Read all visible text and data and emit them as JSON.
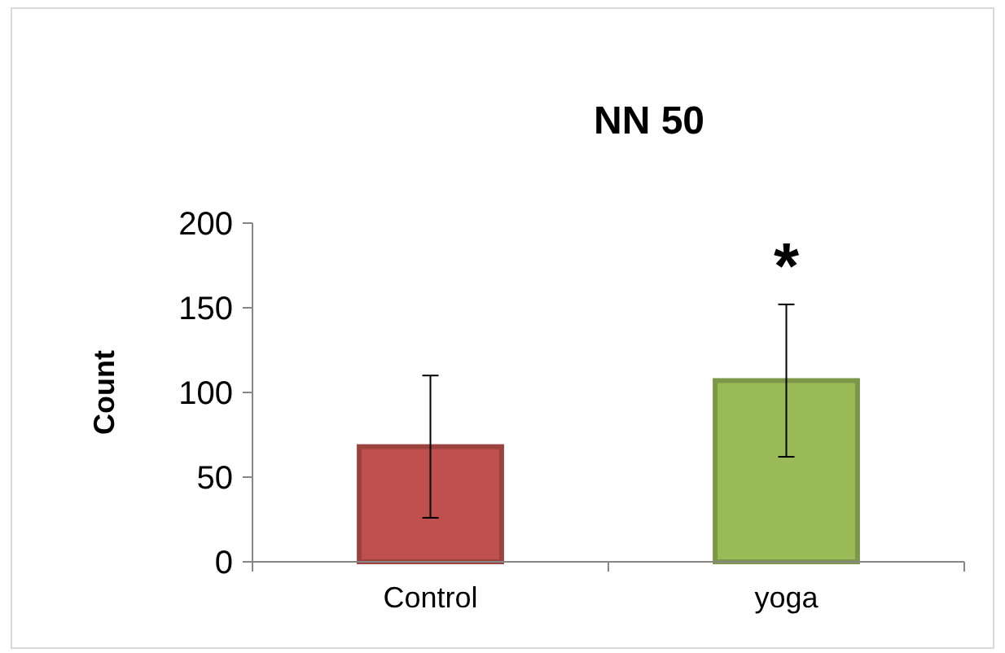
{
  "chart_data": {
    "type": "bar",
    "title": "NN 50",
    "ylabel": "Count",
    "categories": [
      "Control",
      "yoga"
    ],
    "values": [
      68,
      107
    ],
    "colors": [
      "#c0504d",
      "#9bbb59"
    ],
    "errors": [
      42,
      45
    ],
    "ylim": [
      0,
      200
    ],
    "yticks": [
      0,
      50,
      100,
      150,
      200
    ],
    "grid": false,
    "annotations": [
      "*"
    ]
  }
}
